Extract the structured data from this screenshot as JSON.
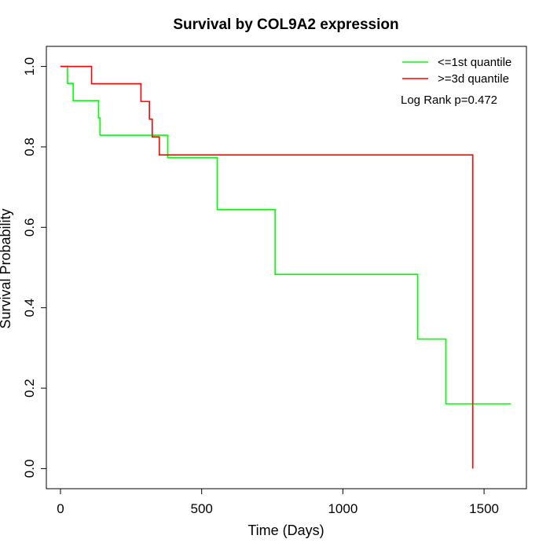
{
  "chart_data": {
    "type": "line",
    "title": "Survival by COL9A2 expression",
    "xlabel": "Time (Days)",
    "ylabel": "Survival Probability",
    "xlim": [
      -50,
      1650
    ],
    "ylim": [
      -0.05,
      1.05
    ],
    "xticks": [
      0,
      500,
      1000,
      1500
    ],
    "yticks": [
      0.0,
      0.2,
      0.4,
      0.6,
      0.8,
      1.0
    ],
    "xtick_labels": [
      "0",
      "500",
      "1000",
      "1500"
    ],
    "ytick_labels": [
      "0.0",
      "0.2",
      "0.4",
      "0.6",
      "0.8",
      "1.0"
    ],
    "legend_position": "top-right",
    "annotation": "Log Rank p=0.472",
    "series": [
      {
        "name": "<=1st quantile",
        "color": "#00ff00",
        "step": true,
        "x": [
          0,
          25,
          45,
          135,
          140,
          380,
          555,
          760,
          1265,
          1365,
          1595
        ],
        "y": [
          1.0,
          0.958,
          0.915,
          0.872,
          0.829,
          0.773,
          0.644,
          0.483,
          0.322,
          0.161,
          0.161
        ]
      },
      {
        "name": ">=3d quantile",
        "color": "#ff0000",
        "step": true,
        "x": [
          0,
          110,
          285,
          315,
          325,
          350,
          1460,
          1460
        ],
        "y": [
          1.0,
          0.957,
          0.913,
          0.869,
          0.825,
          0.78,
          0.78,
          0.0
        ]
      }
    ]
  }
}
